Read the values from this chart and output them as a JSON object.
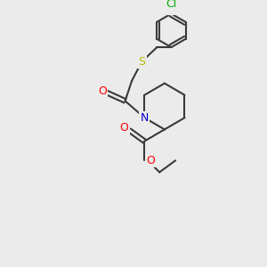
{
  "background_color": "#ebebeb",
  "bond_color": "#3a3a3a",
  "bond_width": 1.5,
  "atom_colors": {
    "O": "#ff0000",
    "N": "#0000cc",
    "S": "#bbbb00",
    "Cl": "#00aa00",
    "C": "#3a3a3a"
  },
  "font_size": 8,
  "fig_size": [
    3.0,
    3.0
  ],
  "dpi": 100
}
